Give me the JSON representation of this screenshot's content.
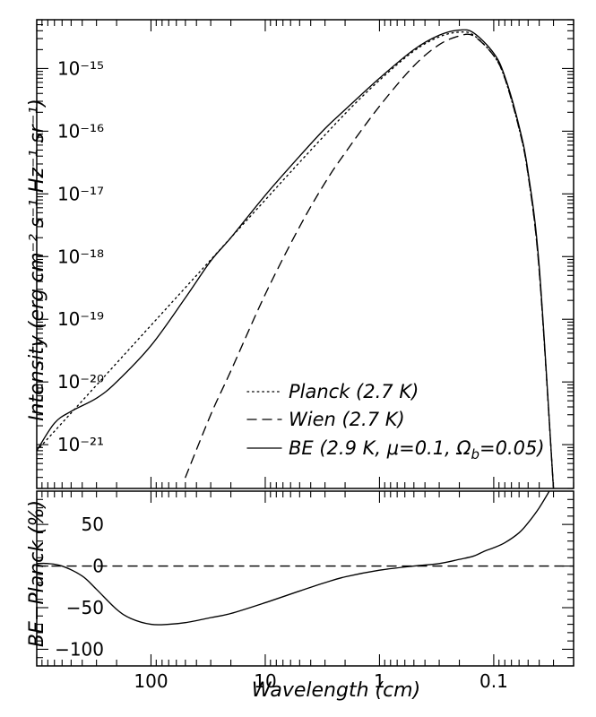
{
  "chart_data": {
    "type": "line",
    "x_scale": "log",
    "x_reversed": true,
    "xlabel": "Wavelength (cm)",
    "x_tick_labels": [
      "100",
      "10",
      "1",
      "0.1"
    ],
    "x_tick_values": [
      100,
      10,
      1,
      0.1
    ],
    "xlim": [
      1000,
      0.02
    ],
    "top_panel": {
      "ylabel": "Intensity (erg cm⁻² s⁻¹ Hz⁻¹ sr⁻¹)",
      "y_scale": "log",
      "ylim": [
        2e-22,
        6e-15
      ],
      "y_tick_labels": [
        "10⁻²¹",
        "10⁻²⁰",
        "10⁻¹⁹",
        "10⁻¹⁸",
        "10⁻¹⁷",
        "10⁻¹⁶",
        "10⁻¹⁵"
      ],
      "y_tick_values": [
        1e-21,
        1e-20,
        1e-19,
        1e-18,
        1e-17,
        1e-16,
        1e-15
      ],
      "legend_position": "bottom-right",
      "series": [
        {
          "name": "Planck (2.7 K)",
          "style": "dotted",
          "x": [
            1000,
            500,
            200,
            100,
            50,
            20,
            10,
            5,
            2,
            1,
            0.5,
            0.3,
            0.2,
            0.15,
            0.1,
            0.08,
            0.06,
            0.05,
            0.04,
            0.03
          ],
          "y": [
            8e-22,
            3.2e-21,
            2e-20,
            8e-20,
            3.2e-19,
            2e-18,
            8e-18,
            3.2e-17,
            1.9e-16,
            6.5e-16,
            1.9e-15,
            3.2e-15,
            3.8e-15,
            3.4e-15,
            1.6e-15,
            7e-16,
            1.1e-16,
            2e-17,
            6e-19,
            2e-22
          ]
        },
        {
          "name": "Wien (2.7 K)",
          "style": "dashed",
          "x": [
            50,
            30,
            20,
            10,
            5,
            3,
            2,
            1,
            0.5,
            0.3,
            0.2,
            0.15,
            0.1,
            0.08,
            0.06,
            0.05,
            0.04,
            0.03
          ],
          "y": [
            3e-22,
            3e-21,
            1.5e-20,
            2.5e-19,
            3e-18,
            1.5e-17,
            4.5e-17,
            2.5e-16,
            1.1e-15,
            2.4e-15,
            3.3e-15,
            3.3e-15,
            1.6e-15,
            7e-16,
            1.1e-16,
            2e-17,
            6e-19,
            2e-22
          ]
        },
        {
          "name": "BE (2.9 K, μ=0.1, Ω_b=0.05)",
          "style": "solid",
          "x": [
            1000,
            700,
            500,
            300,
            200,
            100,
            50,
            30,
            20,
            10,
            5,
            3,
            2,
            1,
            0.5,
            0.3,
            0.2,
            0.15,
            0.1,
            0.08,
            0.06,
            0.05,
            0.04,
            0.03
          ],
          "y": [
            8e-22,
            2.2e-21,
            3.4e-21,
            5.5e-21,
            1e-20,
            3.8e-20,
            2.2e-19,
            8.5e-19,
            2e-18,
            9.5e-18,
            4e-17,
            1.1e-16,
            2.2e-16,
            7e-16,
            2e-15,
            3.4e-15,
            4.1e-15,
            3.7e-15,
            1.75e-15,
            7.5e-16,
            1.2e-16,
            2.2e-17,
            7e-19,
            2e-22
          ]
        }
      ]
    },
    "bottom_panel": {
      "ylabel": "BE−Planck (%)",
      "ylim": [
        -120,
        90
      ],
      "y_tick_labels": [
        "50",
        "0",
        "−50",
        "−100"
      ],
      "y_tick_values": [
        50,
        0,
        -50,
        -100
      ],
      "series": [
        {
          "name": "Zero line",
          "style": "dashed",
          "x": [
            1000,
            0.02
          ],
          "y": [
            0,
            0
          ]
        },
        {
          "name": "BE−Planck",
          "style": "solid",
          "x": [
            1000,
            800,
            600,
            400,
            300,
            200,
            150,
            100,
            70,
            50,
            30,
            20,
            10,
            5,
            3,
            2,
            1,
            0.5,
            0.3,
            0.2,
            0.15,
            0.12,
            0.1,
            0.08,
            0.06,
            0.05,
            0.04,
            0.032
          ],
          "y": [
            3,
            3,
            0,
            -12,
            -28,
            -52,
            -63,
            -70,
            -70,
            -68,
            -62,
            -57,
            -44,
            -30,
            -20,
            -13,
            -5,
            0,
            3,
            8,
            12,
            18,
            22,
            28,
            40,
            52,
            70,
            92
          ]
        }
      ]
    }
  }
}
